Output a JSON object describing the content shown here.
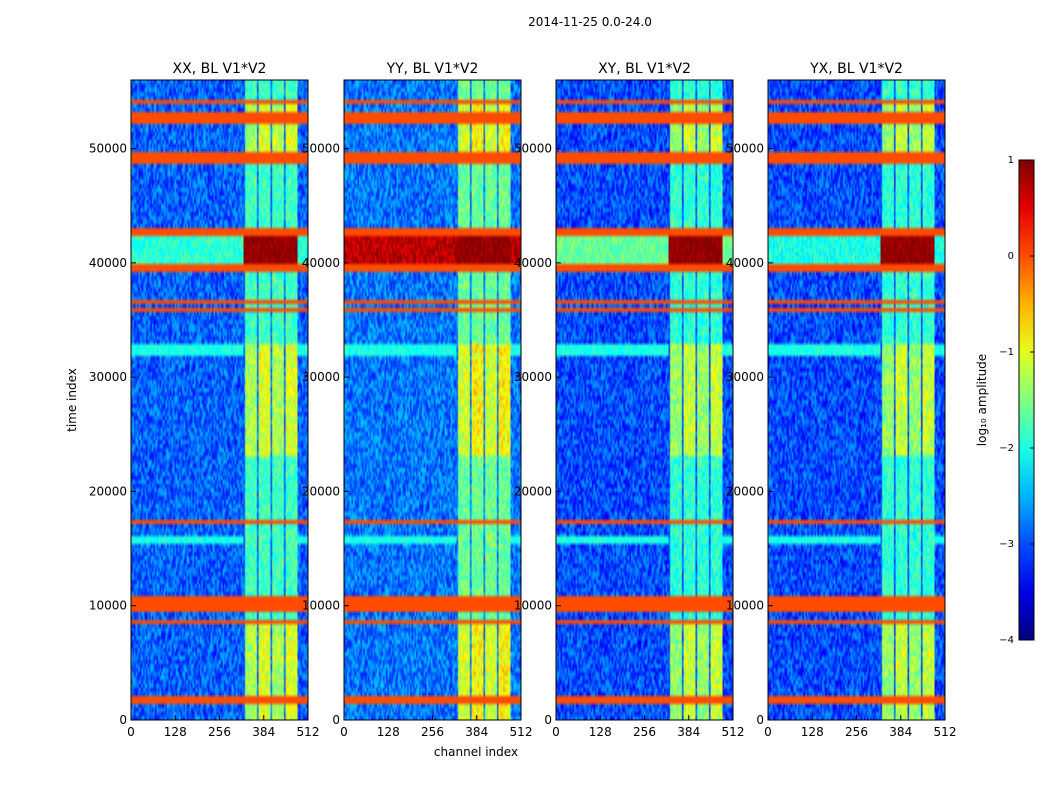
{
  "figure": {
    "suptitle": "2014-11-25 0.0-24.0"
  },
  "chart_data": {
    "type": "heatmap",
    "xlabel": "channel index",
    "ylabel": "time index",
    "xlim": [
      0,
      512
    ],
    "ylim": [
      0,
      56000
    ],
    "x_ticks": [
      "0",
      "128",
      "256",
      "384",
      "512"
    ],
    "x_tick_values": [
      0,
      128,
      256,
      384,
      512
    ],
    "y_ticks": [
      "0",
      "10000",
      "20000",
      "30000",
      "40000",
      "50000"
    ],
    "y_tick_values": [
      0,
      10000,
      20000,
      30000,
      40000,
      50000
    ],
    "panels": [
      {
        "title": "XX, BL V1*V2",
        "background_level": -2.9,
        "band_level": -1.3,
        "burst_level": 0.9,
        "burst_low_channel_level": -1.9,
        "band_channel_start": 325
      },
      {
        "title": "YY, BL V1*V2",
        "background_level": -2.8,
        "band_level": -1.1,
        "burst_level": 0.9,
        "burst_low_channel_level": 0.7,
        "band_channel_start": 325
      },
      {
        "title": "XY, BL V1*V2",
        "background_level": -3.0,
        "band_level": -1.4,
        "burst_level": 0.9,
        "burst_low_channel_level": -1.6,
        "band_channel_start": 325
      },
      {
        "title": "YX, BL V1*V2",
        "background_level": -3.0,
        "band_level": -1.4,
        "burst_level": 0.9,
        "burst_low_channel_level": -2.0,
        "band_channel_start": 325
      }
    ],
    "band_time_segments": [
      [
        0,
        8500
      ],
      [
        23000,
        33000
      ],
      [
        49000,
        54000
      ]
    ],
    "burst_time_range": [
      39500,
      42500
    ],
    "flagged_time_rows": [
      1500,
      2000,
      8500,
      9500,
      10000,
      10500,
      17300,
      36000,
      36500,
      39300,
      39600,
      42500,
      43000,
      49000,
      49500,
      52500,
      53000,
      54200
    ],
    "colorbar": {
      "label": "log₁₀ amplitude",
      "range": [
        -4,
        1
      ],
      "ticks": [
        "1",
        "0",
        "−1",
        "−2",
        "−3",
        "−4"
      ],
      "tick_values": [
        1,
        0,
        -1,
        -2,
        -3,
        -4
      ],
      "colormap": "jet"
    }
  }
}
